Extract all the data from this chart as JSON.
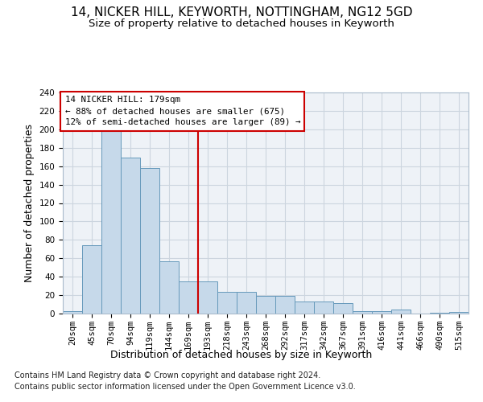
{
  "title1": "14, NICKER HILL, KEYWORTH, NOTTINGHAM, NG12 5GD",
  "title2": "Size of property relative to detached houses in Keyworth",
  "xlabel": "Distribution of detached houses by size in Keyworth",
  "ylabel": "Number of detached properties",
  "bar_color": "#c6d9ea",
  "bar_edge_color": "#6699bb",
  "categories": [
    "20sqm",
    "45sqm",
    "70sqm",
    "94sqm",
    "119sqm",
    "144sqm",
    "169sqm",
    "193sqm",
    "218sqm",
    "243sqm",
    "268sqm",
    "292sqm",
    "317sqm",
    "342sqm",
    "367sqm",
    "391sqm",
    "416sqm",
    "441sqm",
    "466sqm",
    "490sqm",
    "515sqm"
  ],
  "values": [
    3,
    74,
    198,
    169,
    158,
    57,
    35,
    35,
    24,
    24,
    19,
    19,
    13,
    13,
    11,
    3,
    3,
    4,
    0,
    1,
    2
  ],
  "ylim": [
    0,
    240
  ],
  "yticks": [
    0,
    20,
    40,
    60,
    80,
    100,
    120,
    140,
    160,
    180,
    200,
    220,
    240
  ],
  "property_line_x": 6.5,
  "property_line_color": "#cc0000",
  "annotation_text": "14 NICKER HILL: 179sqm\n← 88% of detached houses are smaller (675)\n12% of semi-detached houses are larger (89) →",
  "annotation_box_color": "#ffffff",
  "annotation_box_edge": "#cc0000",
  "footer1": "Contains HM Land Registry data © Crown copyright and database right 2024.",
  "footer2": "Contains public sector information licensed under the Open Government Licence v3.0.",
  "background_color": "#eef2f7",
  "grid_color": "#ccd5df",
  "title1_fontsize": 11,
  "title2_fontsize": 9.5,
  "axis_label_fontsize": 9,
  "tick_fontsize": 7.5,
  "footer_fontsize": 7
}
